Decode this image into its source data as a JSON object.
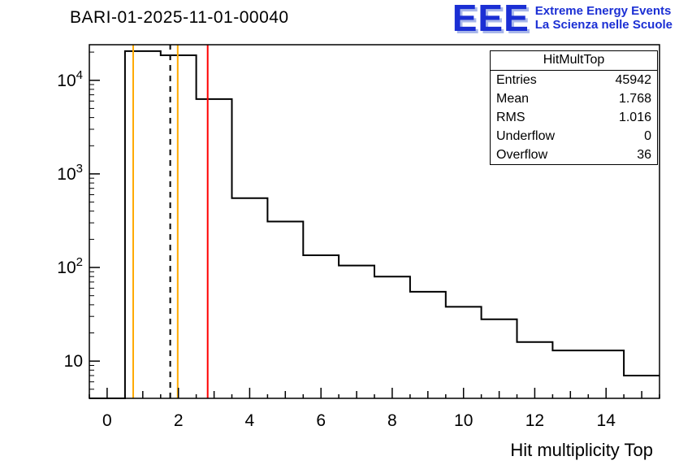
{
  "header": {
    "title": "BARI-01-2025-11-01-00040",
    "logo": {
      "letters": "EEE",
      "line1": "Extreme Energy Events",
      "line2": "La Scienza nelle Scuole",
      "color": "#1b2fd4",
      "shadow_color": "#a9b7ea"
    }
  },
  "stats": {
    "title": "HitMultTop",
    "rows": [
      {
        "label": "Entries",
        "value": "45942"
      },
      {
        "label": "Mean",
        "value": "1.768"
      },
      {
        "label": "RMS",
        "value": "1.016"
      },
      {
        "label": "Underflow",
        "value": "0"
      },
      {
        "label": "Overflow",
        "value": "36"
      }
    ]
  },
  "chart_data": {
    "type": "bar",
    "histogram": true,
    "title": "BARI-01-2025-11-01-00040",
    "xlabel": "Hit multiplicity Top",
    "ylabel": "",
    "yscale": "log",
    "xlim": [
      -0.5,
      15.5
    ],
    "ylim": [
      4,
      24000
    ],
    "bin_width": 1,
    "x_centers": [
      0,
      1,
      2,
      3,
      4,
      5,
      6,
      7,
      8,
      9,
      10,
      11,
      12,
      13,
      14,
      15
    ],
    "values": [
      0,
      20500,
      18500,
      6300,
      550,
      310,
      135,
      105,
      80,
      55,
      38,
      28,
      16,
      13,
      13,
      7
    ],
    "line_color": "#000000",
    "x_major_ticks": [
      0,
      2,
      4,
      6,
      8,
      10,
      12,
      14
    ],
    "y_major_ticks": [
      {
        "value": 10,
        "base": "10",
        "exp": ""
      },
      {
        "value": 100,
        "base": "10",
        "exp": "2"
      },
      {
        "value": 1000,
        "base": "10",
        "exp": "3"
      },
      {
        "value": 10000,
        "base": "10",
        "exp": "4"
      }
    ],
    "marker_lines": [
      {
        "x": 0.73,
        "color": "#ffaa00",
        "style": "solid"
      },
      {
        "x": 1.77,
        "color": "#000000",
        "style": "dashed"
      },
      {
        "x": 1.98,
        "color": "#ffaa00",
        "style": "solid"
      },
      {
        "x": 2.82,
        "color": "#ff0000",
        "style": "solid"
      }
    ],
    "legend": "none",
    "grid": false
  }
}
